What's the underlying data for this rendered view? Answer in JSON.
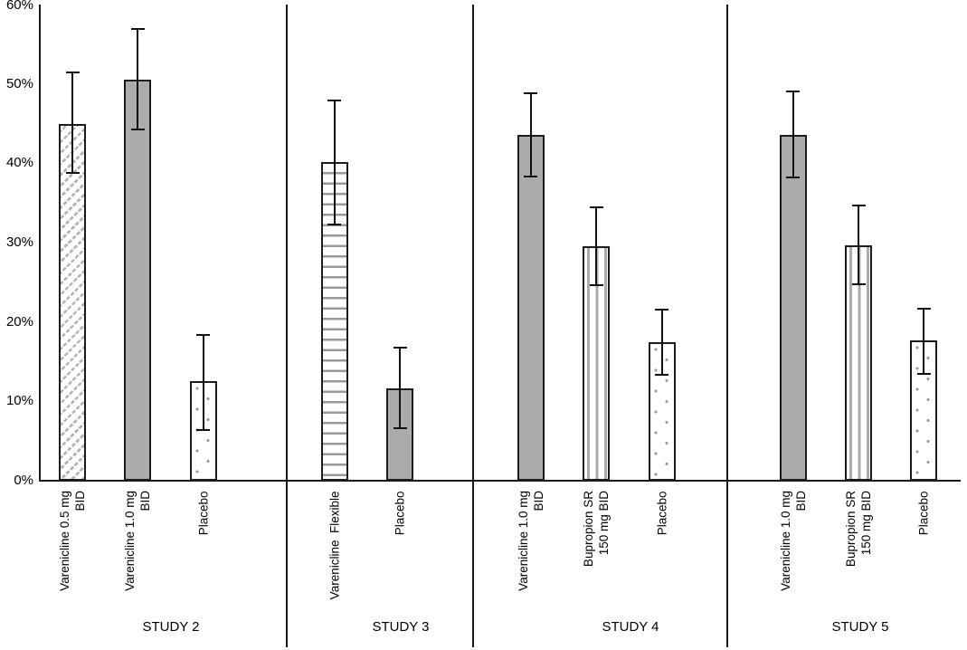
{
  "chart_data": {
    "type": "bar",
    "title": "",
    "xlabel": "",
    "ylabel": "",
    "unit": "%",
    "ylim": [
      0,
      60
    ],
    "y_ticks": [
      "0%",
      "10%",
      "20%",
      "30%",
      "40%",
      "50%",
      "60%"
    ],
    "grid": false,
    "legend": "none",
    "error_bars": true,
    "groups": [
      {
        "label": "STUDY 2",
        "bars": [
          {
            "label_lines": [
              "Varenicline 0.5 mg",
              "BID"
            ],
            "value": 45.0,
            "err_low": 38.8,
            "err_high": 51.4,
            "pattern": "diagonal-hatch"
          },
          {
            "label_lines": [
              "Varenicline 1.0 mg",
              "BID"
            ],
            "value": 50.5,
            "err_low": 44.3,
            "err_high": 56.9,
            "pattern": "solid-gray"
          },
          {
            "label_lines": [
              "Placebo"
            ],
            "value": 12.5,
            "err_low": 6.4,
            "err_high": 18.4,
            "pattern": "dots"
          }
        ]
      },
      {
        "label": "STUDY 3",
        "bars": [
          {
            "label_lines": [
              "Varenicline  Flexible"
            ],
            "value": 40.1,
            "err_low": 32.3,
            "err_high": 47.9,
            "pattern": "horizontal-stripes"
          },
          {
            "label_lines": [
              "Placebo"
            ],
            "value": 11.6,
            "err_low": 6.6,
            "err_high": 16.8,
            "pattern": "solid-gray"
          }
        ]
      },
      {
        "label": "STUDY 4",
        "bars": [
          {
            "label_lines": [
              "Varenicline 1.0 mg",
              "BID"
            ],
            "value": 43.6,
            "err_low": 38.3,
            "err_high": 48.8,
            "pattern": "solid-gray"
          },
          {
            "label_lines": [
              "Bupropion SR",
              "150 mg BID"
            ],
            "value": 29.5,
            "err_low": 24.6,
            "err_high": 34.4,
            "pattern": "vertical-stripes"
          },
          {
            "label_lines": [
              "Placebo"
            ],
            "value": 17.4,
            "err_low": 13.3,
            "err_high": 21.6,
            "pattern": "dots"
          }
        ]
      },
      {
        "label": "STUDY 5",
        "bars": [
          {
            "label_lines": [
              "Varenicline 1.0 mg",
              "BID"
            ],
            "value": 43.6,
            "err_low": 38.2,
            "err_high": 49.0,
            "pattern": "solid-gray"
          },
          {
            "label_lines": [
              "Bupropion SR",
              "150 mg BID"
            ],
            "value": 29.7,
            "err_low": 24.7,
            "err_high": 34.7,
            "pattern": "vertical-stripes"
          },
          {
            "label_lines": [
              "Placebo"
            ],
            "value": 17.7,
            "err_low": 13.5,
            "err_high": 21.7,
            "pattern": "dots"
          }
        ]
      }
    ],
    "colors": {
      "background": "#ffffff",
      "bar_fill_gray": "#ababab",
      "bar_border": "#1c1c1c",
      "error_bar": "#111111",
      "pattern_gray": "#9a9a9a",
      "text": "#000000"
    }
  }
}
